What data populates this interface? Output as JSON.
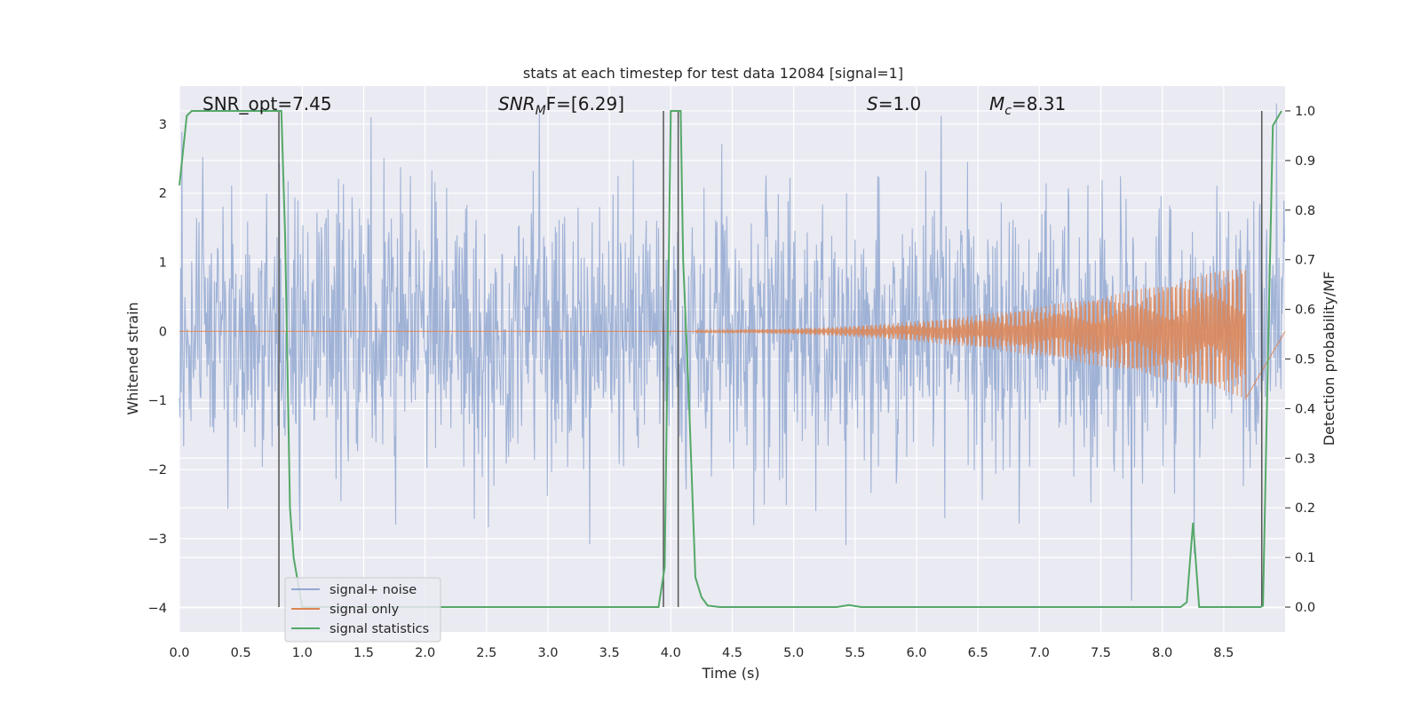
{
  "chart_data": {
    "type": "line",
    "title": "stats at each timestep for test data 12084 [signal=1]",
    "xlabel": "Time (s)",
    "ylabel_left": "Whitened strain",
    "ylabel_right": "Detection probability/MF",
    "xlim": [
      0.0,
      9.0
    ],
    "ylim_left": [
      -4.35,
      3.55
    ],
    "ylim_right": [
      -0.05,
      1.05
    ],
    "x_ticks": [
      0.0,
      0.5,
      1.0,
      1.5,
      2.0,
      2.5,
      3.0,
      3.5,
      4.0,
      4.5,
      5.0,
      5.5,
      6.0,
      6.5,
      7.0,
      7.5,
      8.0,
      8.5
    ],
    "x_tick_labels": [
      "0.0",
      "0.5",
      "1.0",
      "1.5",
      "2.0",
      "2.5",
      "3.0",
      "3.5",
      "4.0",
      "4.5",
      "5.0",
      "5.5",
      "6.0",
      "6.5",
      "7.0",
      "7.5",
      "8.0",
      "8.5"
    ],
    "left_ticks": [
      -4,
      -3,
      -2,
      -1,
      0,
      1,
      2,
      3
    ],
    "left_tick_labels": [
      "−4",
      "−3",
      "−2",
      "−1",
      "0",
      "1",
      "2",
      "3"
    ],
    "right_ticks": [
      0.0,
      0.1,
      0.2,
      0.3,
      0.4,
      0.5,
      0.6,
      0.7,
      0.8,
      0.9,
      1.0
    ],
    "right_tick_labels": [
      "0.0",
      "0.1",
      "0.2",
      "0.3",
      "0.4",
      "0.5",
      "0.6",
      "0.7",
      "0.8",
      "0.9",
      "1.0"
    ],
    "grid": true,
    "legend_position": "lower-left",
    "annotations": {
      "snr_opt": "SNR_opt=7.45",
      "snr_mf_base": "SNR",
      "snr_mf_sub": "M",
      "snr_mf_rest": "F=[6.29]",
      "s_label": "S",
      "s_value": "=1.0",
      "mc_label": "M",
      "mc_sub": "c",
      "mc_value": "=8.31"
    },
    "series": [
      {
        "name": "signal+ noise",
        "axis": "left",
        "color": "#92a8d1",
        "description_kind": "noise",
        "duration": 9.0,
        "samples": 1800,
        "sigma": 0.95,
        "max_abs": 3.9
      },
      {
        "name": "signal only",
        "axis": "left",
        "color": "#dd8452",
        "kind": "chirp",
        "start_time": 4.2,
        "end_time": 8.68,
        "peak_amplitude": 0.95
      },
      {
        "name": "signal statistics",
        "axis": "right",
        "color": "#55a868",
        "x": [
          0.0,
          0.06,
          0.1,
          0.3,
          0.5,
          0.6,
          0.7,
          0.8,
          0.83,
          0.86,
          0.9,
          0.93,
          1.0,
          1.1,
          1.5,
          2.0,
          2.5,
          3.0,
          3.5,
          3.9,
          3.95,
          4.0,
          4.05,
          4.08,
          4.1,
          4.15,
          4.2,
          4.25,
          4.3,
          4.4,
          5.0,
          5.35,
          5.45,
          5.55,
          6.0,
          7.0,
          8.0,
          8.15,
          8.2,
          8.25,
          8.3,
          8.4,
          8.8,
          8.82,
          8.86,
          8.9,
          8.97
        ],
        "y": [
          0.85,
          0.99,
          1.0,
          1.0,
          1.0,
          1.0,
          1.0,
          1.0,
          1.0,
          0.75,
          0.2,
          0.1,
          0.0,
          0.0,
          0.0,
          0.0,
          0.0,
          0.0,
          0.0,
          0.0,
          0.08,
          1.0,
          1.0,
          1.0,
          0.7,
          0.4,
          0.06,
          0.02,
          0.003,
          0.0,
          0.0,
          0.0,
          0.004,
          0.0,
          0.0,
          0.0,
          0.0,
          0.0,
          0.01,
          0.17,
          0.0,
          0.0,
          0.0,
          0.003,
          0.5,
          0.97,
          1.0
        ]
      }
    ],
    "vertical_markers": [
      0.81,
      3.94,
      4.06,
      8.81
    ],
    "legend": [
      "signal+ noise",
      "signal only",
      "signal statistics"
    ]
  }
}
